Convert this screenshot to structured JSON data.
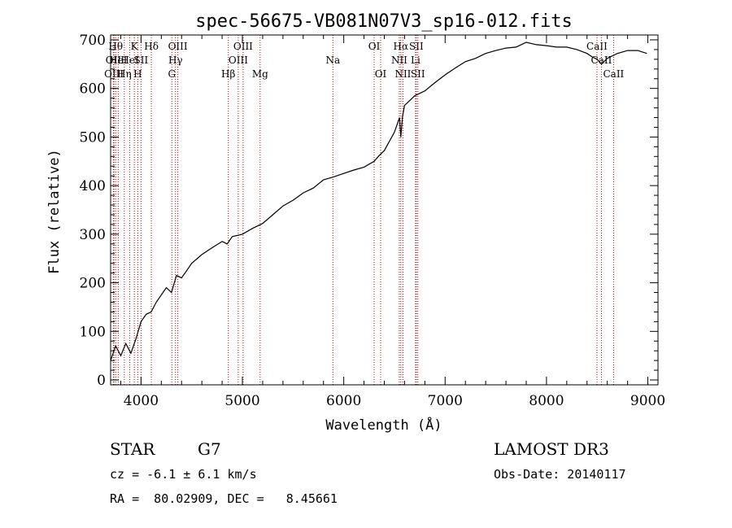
{
  "chart_data": {
    "type": "line",
    "title": "spec-56675-VB081N07V3_sp16-012.fits",
    "xlabel": "Wavelength (Å)",
    "ylabel": "Flux (relative)",
    "xlim": [
      3700,
      9100
    ],
    "ylim": [
      -10,
      710
    ],
    "xticks": [
      4000,
      5000,
      6000,
      7000,
      8000,
      9000
    ],
    "yticks": [
      0,
      100,
      200,
      300,
      400,
      500,
      600,
      700
    ],
    "grid": false,
    "series": [
      {
        "name": "spectrum",
        "x": [
          3700,
          3750,
          3800,
          3850,
          3900,
          3950,
          4000,
          4050,
          4100,
          4150,
          4200,
          4250,
          4300,
          4350,
          4400,
          4450,
          4500,
          4600,
          4700,
          4800,
          4850,
          4900,
          5000,
          5100,
          5200,
          5300,
          5400,
          5500,
          5600,
          5700,
          5800,
          5900,
          6000,
          6100,
          6200,
          6300,
          6350,
          6400,
          6500,
          6550,
          6563,
          6580,
          6600,
          6700,
          6800,
          6900,
          7000,
          7100,
          7200,
          7300,
          7400,
          7500,
          7600,
          7700,
          7750,
          7800,
          7900,
          8000,
          8100,
          8200,
          8300,
          8400,
          8450,
          8500,
          8542,
          8600,
          8700,
          8800,
          8900,
          8990
        ],
        "y": [
          40,
          70,
          50,
          75,
          55,
          85,
          120,
          135,
          140,
          160,
          175,
          190,
          180,
          215,
          210,
          225,
          240,
          258,
          272,
          285,
          280,
          295,
          300,
          312,
          322,
          340,
          358,
          370,
          385,
          395,
          412,
          418,
          425,
          432,
          438,
          450,
          462,
          472,
          510,
          540,
          500,
          542,
          565,
          585,
          595,
          612,
          628,
          642,
          655,
          662,
          672,
          678,
          683,
          685,
          690,
          695,
          690,
          688,
          685,
          685,
          680,
          672,
          665,
          660,
          650,
          662,
          672,
          678,
          678,
          672
        ]
      }
    ],
    "lines": [
      {
        "x": 3727,
        "label": "OII",
        "row": 2
      },
      {
        "x": 3733,
        "label": "OIII",
        "row": 3
      },
      {
        "x": 3750,
        "label": "Hθ",
        "row": 1
      },
      {
        "x": 3775,
        "label": "HeI",
        "row": 2
      },
      {
        "x": 3835,
        "label": "Hη",
        "row": 3
      },
      {
        "x": 3889,
        "label": "HeI",
        "row": 2
      },
      {
        "x": 3934,
        "label": "K",
        "row": 1
      },
      {
        "x": 3968,
        "label": "H",
        "row": 3
      },
      {
        "x": 4000,
        "label": "SII",
        "row": 2
      },
      {
        "x": 4102,
        "label": "Hδ",
        "row": 1
      },
      {
        "x": 4304,
        "label": "G",
        "row": 3
      },
      {
        "x": 4340,
        "label": "Hγ",
        "row": 2
      },
      {
        "x": 4363,
        "label": "OIII",
        "row": 1
      },
      {
        "x": 4861,
        "label": "Hβ",
        "row": 3
      },
      {
        "x": 4959,
        "label": "OIII",
        "row": 2
      },
      {
        "x": 5007,
        "label": "OIII",
        "row": 1
      },
      {
        "x": 5175,
        "label": "Mg",
        "row": 3
      },
      {
        "x": 5893,
        "label": "Na",
        "row": 2
      },
      {
        "x": 6300,
        "label": "OI",
        "row": 1
      },
      {
        "x": 6364,
        "label": "OI",
        "row": 3
      },
      {
        "x": 6548,
        "label": "NII",
        "row": 2
      },
      {
        "x": 6563,
        "label": "Hα",
        "row": 1
      },
      {
        "x": 6584,
        "label": "NII",
        "row": 3
      },
      {
        "x": 6708,
        "label": "Li",
        "row": 2
      },
      {
        "x": 6716,
        "label": "SII",
        "row": 1
      },
      {
        "x": 6731,
        "label": "SII",
        "row": 3
      },
      {
        "x": 8498,
        "label": "CaII",
        "row": 1
      },
      {
        "x": 8542,
        "label": "CaII",
        "row": 2
      },
      {
        "x": 8662,
        "label": "CaII",
        "row": 3
      }
    ]
  },
  "info": {
    "class": "STAR",
    "subclass": "G7",
    "survey": "LAMOST DR3",
    "cz": "cz = -6.1 ± 6.1 km/s",
    "obs_date": "Obs-Date: 20140117",
    "coords": "RA =  80.02909, DEC =   8.45661"
  }
}
